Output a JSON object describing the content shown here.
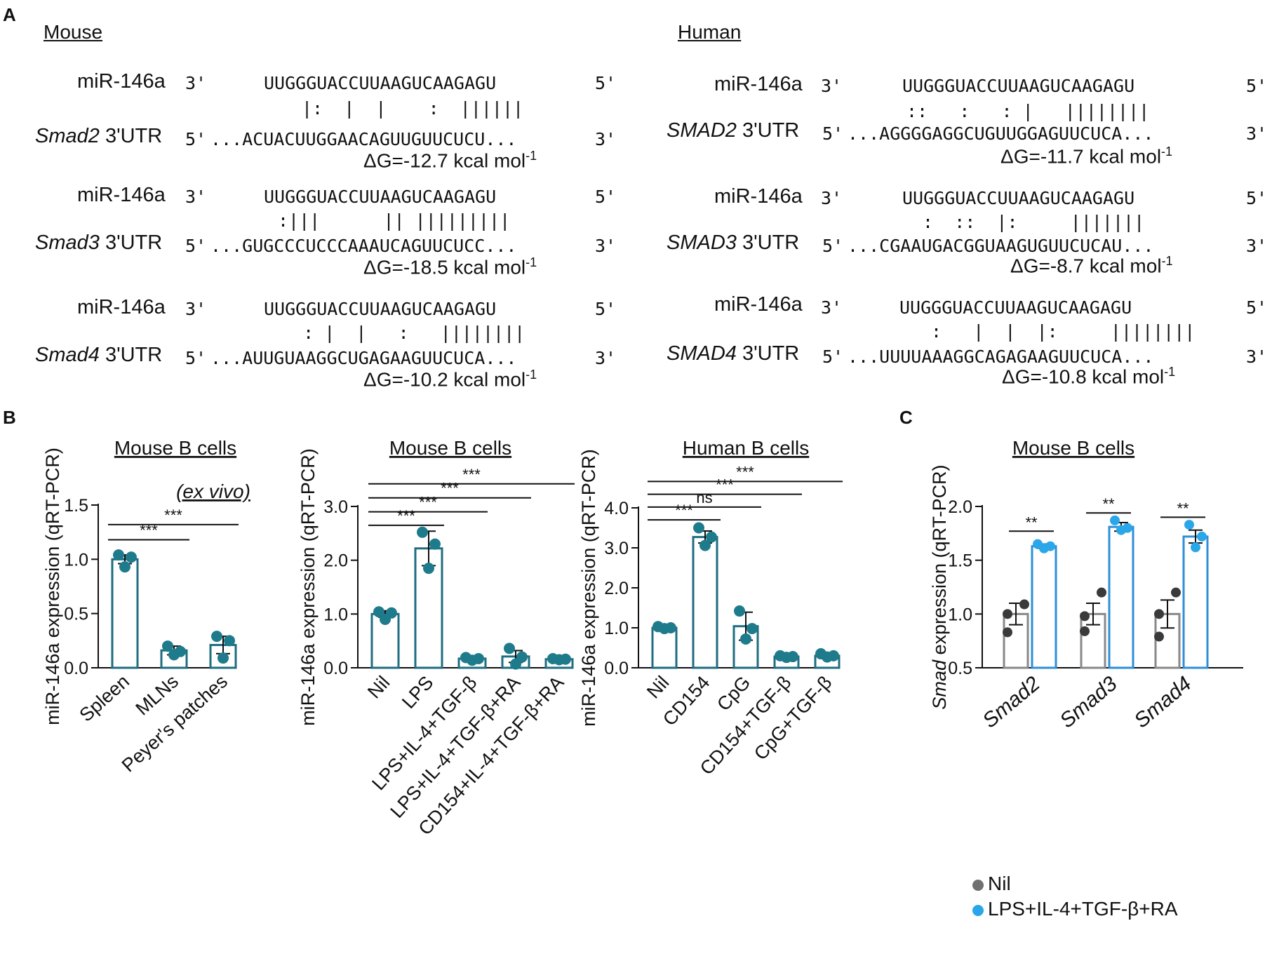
{
  "panel_labels": {
    "A": "A",
    "B": "B",
    "C": "C"
  },
  "panel_a": {
    "mouse": {
      "title": "Mouse",
      "blocks": [
        {
          "mirna": "miR-146a",
          "mirna_end3": "3'",
          "mirna_seq": "UUGGGUACCUUAAGUCAAGAGU",
          "mirna_end5": "5'",
          "pairing": "|:  |  |    :  ||||||",
          "utr_gene": "Smad2",
          "utr_suffix": " 3'UTR",
          "utr_end5": "5'",
          "utr_seq": "...ACUACUUGGAACAGUUGUUCUCU...",
          "utr_end3": "3'",
          "dg": "ΔG=-12.7 kcal mol",
          "dg_sup": "-1"
        },
        {
          "mirna": "miR-146a",
          "mirna_end3": "3'",
          "mirna_seq": "UUGGGUACCUUAAGUCAAGAGU",
          "mirna_end5": "5'",
          "pairing": ":|||      || |||||||||",
          "utr_gene": "Smad3",
          "utr_suffix": " 3'UTR",
          "utr_end5": "5'",
          "utr_seq": "...GUGCCCUCCCAAAUCAGUUCUCC...",
          "utr_end3": "3'",
          "dg": "ΔG=-18.5 kcal mol",
          "dg_sup": "-1"
        },
        {
          "mirna": "miR-146a",
          "mirna_end3": "3'",
          "mirna_seq": "UUGGGUACCUUAAGUCAAGAGU",
          "mirna_end5": "5'",
          "pairing": "  : |  |   :   ||||||||",
          "utr_gene": "Smad4",
          "utr_suffix": " 3'UTR",
          "utr_end5": "5'",
          "utr_seq": "...AUUGUAAGGCUGAGAAGUUCUCA...",
          "utr_end3": "3'",
          "dg": "ΔG=-10.2 kcal mol",
          "dg_sup": "-1"
        }
      ]
    },
    "human": {
      "title": "Human",
      "blocks": [
        {
          "mirna": "miR-146a",
          "mirna_end3": "3'",
          "mirna_seq": "UUGGGUACCUUAAGUCAAGAGU",
          "mirna_end5": "5'",
          "pairing": "::   :   : |   ||||||||",
          "utr_gene": "SMAD2",
          "utr_suffix": " 3'UTR",
          "utr_end5": "5'",
          "utr_seq": "...AGGGGAGGCUGUUGGAGUUCUCA...",
          "utr_end3": "3'",
          "dg": "ΔG=-11.7 kcal mol",
          "dg_sup": "-1"
        },
        {
          "mirna": "miR-146a",
          "mirna_end3": "3'",
          "mirna_seq": "UUGGGUACCUUAAGUCAAGAGU",
          "mirna_end5": "5'",
          "pairing": " :  ::  |:     |||||||",
          "utr_gene": "SMAD3",
          "utr_suffix": " 3'UTR",
          "utr_end5": "5'",
          "utr_seq": "...CGAAUGACGGUAAGUGUUCUCAU...",
          "utr_end3": "3'",
          "dg": "ΔG=-8.7 kcal mol",
          "dg_sup": "-1"
        },
        {
          "mirna": "miR-146a",
          "mirna_end3": "3'",
          "mirna_seq": "UUGGGUACCUUAAGUCAAGAGU",
          "mirna_end5": "5'",
          "pairing": " :   |  |  |:     ||||||||",
          "utr_gene": "SMAD4",
          "utr_suffix": " 3'UTR",
          "utr_end5": "5'",
          "utr_seq": "...UUUUAAAGGCAGAGAAGUUCUCA...",
          "utr_end3": "3'",
          "dg": "ΔG=-10.8 kcal mol",
          "dg_sup": "-1"
        }
      ]
    }
  },
  "chart_data": [
    {
      "type": "bar",
      "title": "Mouse B cells",
      "subtitle": "(ex vivo)",
      "ylabel": "miR-146a expression (qRT-PCR)",
      "ylim": [
        0,
        1.5
      ],
      "yticks": [
        "0.0",
        "0.5",
        "1.0",
        "1.5"
      ],
      "ytick_values": [
        0,
        0.5,
        1.0,
        1.5
      ],
      "categories": [
        "Spleen",
        "MLNs",
        "Peyer's patches"
      ],
      "values": [
        1.0,
        0.16,
        0.21
      ],
      "errors": [
        0.04,
        0.04,
        0.08
      ],
      "points": [
        [
          1.04,
          1.02,
          0.93
        ],
        [
          0.2,
          0.15,
          0.12
        ],
        [
          0.29,
          0.25,
          0.09
        ]
      ],
      "color": "#1e6e84",
      "brackets": [
        {
          "from": 0,
          "to": 1,
          "label": "***",
          "y": 1.18
        },
        {
          "from": 0,
          "to": 2,
          "label": "***",
          "y": 1.32
        }
      ]
    },
    {
      "type": "bar",
      "title": "Mouse B cells",
      "ylabel": "miR-146a expression (qRT-PCR)",
      "ylim": [
        0,
        3.0
      ],
      "yticks": [
        "0.0",
        "1.0",
        "2.0",
        "3.0"
      ],
      "ytick_values": [
        0,
        1.0,
        2.0,
        3.0
      ],
      "categories": [
        "Nil",
        "LPS",
        "LPS+IL-4+TGF-β",
        "LPS+IL-4+TGF-β+RA",
        "CD154+IL-4+TGF-β+RA"
      ],
      "values": [
        1.0,
        2.22,
        0.17,
        0.21,
        0.16
      ],
      "errors": [
        0.06,
        0.32,
        0.03,
        0.11,
        0.02
      ],
      "points": [
        [
          1.04,
          1.02,
          0.9
        ],
        [
          2.52,
          2.3,
          1.85
        ],
        [
          0.19,
          0.17,
          0.14
        ],
        [
          0.36,
          0.2,
          0.07
        ],
        [
          0.17,
          0.16,
          0.15
        ]
      ],
      "color": "#1e6e84",
      "brackets": [
        {
          "from": 0,
          "to": 1,
          "label": "***",
          "y": 2.65
        },
        {
          "from": 0,
          "to": 2,
          "label": "***",
          "y": 2.9
        },
        {
          "from": 0,
          "to": 3,
          "label": "***",
          "y": 3.16
        },
        {
          "from": 0,
          "to": 4,
          "label": "***",
          "y": 3.42
        }
      ]
    },
    {
      "type": "bar",
      "title": "Human B cells",
      "ylabel": "miR-146a expression (qRT-PCR)",
      "ylim": [
        0,
        4.0
      ],
      "yticks": [
        "0.0",
        "1.0",
        "2.0",
        "3.0",
        "4.0"
      ],
      "ytick_values": [
        0,
        1.0,
        2.0,
        3.0,
        4.0
      ],
      "categories": [
        "Nil",
        "CD154",
        "CpG",
        "CD154+TGF-β",
        "CpG+TGF-β"
      ],
      "values": [
        1.0,
        3.27,
        1.04,
        0.28,
        0.3
      ],
      "errors": [
        0.02,
        0.15,
        0.35,
        0.04,
        0.05
      ],
      "points": [
        [
          1.03,
          1.0,
          0.98
        ],
        [
          3.5,
          3.27,
          3.06
        ],
        [
          1.42,
          0.98,
          0.72
        ],
        [
          0.3,
          0.28,
          0.26
        ],
        [
          0.35,
          0.3,
          0.27
        ]
      ],
      "color": "#1e6e84",
      "brackets": [
        {
          "from": 0,
          "to": 1,
          "label": "***",
          "y": 3.7
        },
        {
          "from": 0,
          "to": 2,
          "label": "ns",
          "y": 4.02
        },
        {
          "from": 0,
          "to": 3,
          "label": "***",
          "y": 4.34
        },
        {
          "from": 0,
          "to": 4,
          "label": "***",
          "y": 4.66
        }
      ]
    },
    {
      "type": "bar",
      "title": "Mouse B cells",
      "ylabel": "Smad expression (qRT-PCR)",
      "ylabel_italic": "Smad",
      "ylabel_rest": " expression (qRT-PCR)",
      "ylim": [
        0.5,
        2.0
      ],
      "yticks": [
        "0.5",
        "1.0",
        "1.5",
        "2.0"
      ],
      "ytick_values": [
        0.5,
        1.0,
        1.5,
        2.0
      ],
      "categories": [
        "Smad2",
        "Smad3",
        "Smad4"
      ],
      "series": [
        {
          "name": "Nil",
          "color": "#888888",
          "values": [
            1.0,
            1.0,
            1.0
          ],
          "errors": [
            0.1,
            0.1,
            0.13
          ],
          "points": [
            [
              1.09,
              1.0,
              0.83
            ],
            [
              1.2,
              0.98,
              0.84
            ],
            [
              1.2,
              1.0,
              0.79
            ]
          ]
        },
        {
          "name": "LPS+IL-4+TGF-β+RA",
          "color": "#2e8fd8",
          "values": [
            1.63,
            1.81,
            1.72
          ],
          "errors": [
            0.02,
            0.04,
            0.06
          ],
          "points": [
            [
              1.65,
              1.63,
              1.61
            ],
            [
              1.87,
              1.8,
              1.78
            ],
            [
              1.83,
              1.72,
              1.62
            ]
          ]
        }
      ],
      "brackets": [
        {
          "group": 0,
          "label": "**",
          "y": 1.77
        },
        {
          "group": 1,
          "label": "**",
          "y": 1.94
        },
        {
          "group": 2,
          "label": "**",
          "y": 1.9
        }
      ],
      "legend": [
        {
          "label": "Nil",
          "color": "#707070"
        },
        {
          "label": "LPS+IL-4+TGF-β+RA",
          "color": "#2aa7e8"
        }
      ]
    }
  ]
}
